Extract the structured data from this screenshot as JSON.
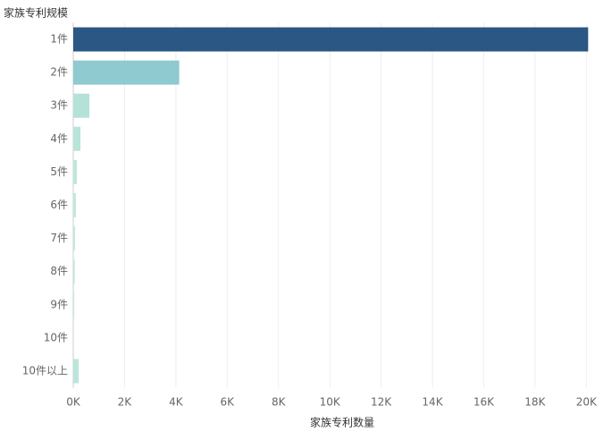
{
  "chart_data": {
    "type": "bar",
    "orientation": "horizontal",
    "y_axis_title": "家族专利规模",
    "x_axis_title": "家族专利数量",
    "categories": [
      "1件",
      "2件",
      "3件",
      "4件",
      "5件",
      "6件",
      "7件",
      "8件",
      "9件",
      "10件",
      "10件以上"
    ],
    "values": [
      20070,
      4130,
      630,
      280,
      140,
      100,
      70,
      60,
      40,
      10,
      210
    ],
    "colors": [
      "#2a5783",
      "#8ecad0",
      "#b5e2d8",
      "#b9e4da",
      "#bde6dc",
      "#bfe7dd",
      "#c1e8de",
      "#c2e8df",
      "#c4e9e0",
      "#c6eae1",
      "#bae5db"
    ],
    "xlim": [
      0,
      21000
    ],
    "xticks": [
      {
        "value": 0,
        "label": "0K"
      },
      {
        "value": 2000,
        "label": "2K"
      },
      {
        "value": 4000,
        "label": "4K"
      },
      {
        "value": 6000,
        "label": "6K"
      },
      {
        "value": 8000,
        "label": "8K"
      },
      {
        "value": 10000,
        "label": "10K"
      },
      {
        "value": 12000,
        "label": "12K"
      },
      {
        "value": 14000,
        "label": "14K"
      },
      {
        "value": 16000,
        "label": "16K"
      },
      {
        "value": 18000,
        "label": "18K"
      },
      {
        "value": 20000,
        "label": "20K"
      }
    ],
    "grid": true
  }
}
